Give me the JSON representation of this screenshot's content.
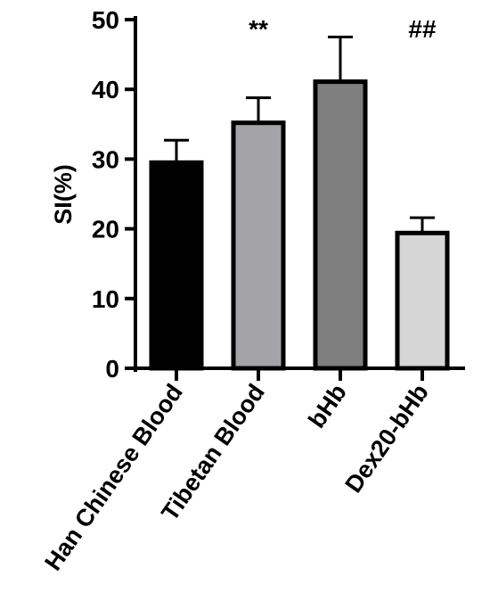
{
  "chart_data": {
    "type": "bar",
    "ylabel": "SI(%)",
    "xlabel": "",
    "ylim": [
      0,
      50
    ],
    "yticks": [
      0,
      10,
      20,
      30,
      40,
      50
    ],
    "categories": [
      "Han Chinese Blood",
      "Tibetan Blood",
      "bHb",
      "Dex20-bHb"
    ],
    "values": [
      29.5,
      35.2,
      41.1,
      19.4
    ],
    "error_upper": [
      3.2,
      3.6,
      6.4,
      2.2
    ],
    "bar_colors": [
      "#000000",
      "#a4a4a8",
      "#7f7f7f",
      "#d6d6d6"
    ],
    "annotations": [
      "",
      "**",
      "",
      "##"
    ],
    "grid": false,
    "legend": false
  }
}
